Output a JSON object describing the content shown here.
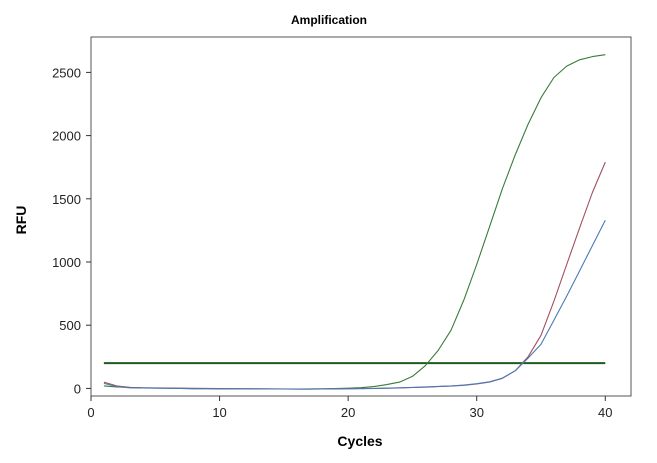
{
  "chart_data": {
    "type": "line",
    "title": "Amplification",
    "xlabel": "Cycles",
    "ylabel": "RFU",
    "xlim": [
      0,
      42
    ],
    "ylim": [
      -60,
      2780
    ],
    "x_ticks": [
      0,
      10,
      20,
      30,
      40
    ],
    "y_ticks": [
      0,
      500,
      1000,
      1500,
      2000,
      2500
    ],
    "grid": false,
    "legend": "none",
    "x": [
      1,
      2,
      3,
      4,
      5,
      6,
      7,
      8,
      9,
      10,
      11,
      12,
      13,
      14,
      15,
      16,
      17,
      18,
      19,
      20,
      21,
      22,
      23,
      24,
      25,
      26,
      27,
      28,
      29,
      30,
      31,
      32,
      33,
      34,
      35,
      36,
      37,
      38,
      39,
      40
    ],
    "series": [
      {
        "name": "green",
        "color": "#3a7a3a",
        "values": [
          20,
          12,
          8,
          5,
          3,
          2,
          0,
          -2,
          -2,
          -3,
          -3,
          -3,
          -4,
          -4,
          -5,
          -5,
          -4,
          -3,
          -1,
          2,
          6,
          14,
          30,
          50,
          95,
          180,
          300,
          460,
          700,
          980,
          1280,
          1580,
          1850,
          2090,
          2300,
          2460,
          2550,
          2600,
          2625,
          2640
        ]
      },
      {
        "name": "red",
        "color": "#a05060",
        "values": [
          50,
          20,
          8,
          5,
          4,
          3,
          2,
          1,
          0,
          -1,
          -2,
          -3,
          -3,
          -4,
          -4,
          -5,
          -5,
          -4,
          -3,
          -2,
          -1,
          0,
          2,
          4,
          7,
          10,
          14,
          18,
          25,
          35,
          50,
          80,
          140,
          250,
          420,
          690,
          980,
          1270,
          1550,
          1790
        ]
      },
      {
        "name": "blue",
        "color": "#4a7ab5",
        "values": [
          40,
          15,
          5,
          3,
          2,
          1,
          0,
          -2,
          -2,
          -3,
          -3,
          -4,
          -4,
          -5,
          -5,
          -6,
          -6,
          -5,
          -4,
          -3,
          -2,
          -1,
          2,
          5,
          8,
          12,
          16,
          20,
          27,
          37,
          52,
          82,
          140,
          240,
          350,
          540,
          730,
          930,
          1130,
          1330
        ]
      }
    ],
    "threshold": {
      "name": "threshold",
      "color": "#1e5a1e",
      "value": 200,
      "x_range": [
        1,
        40
      ]
    }
  }
}
